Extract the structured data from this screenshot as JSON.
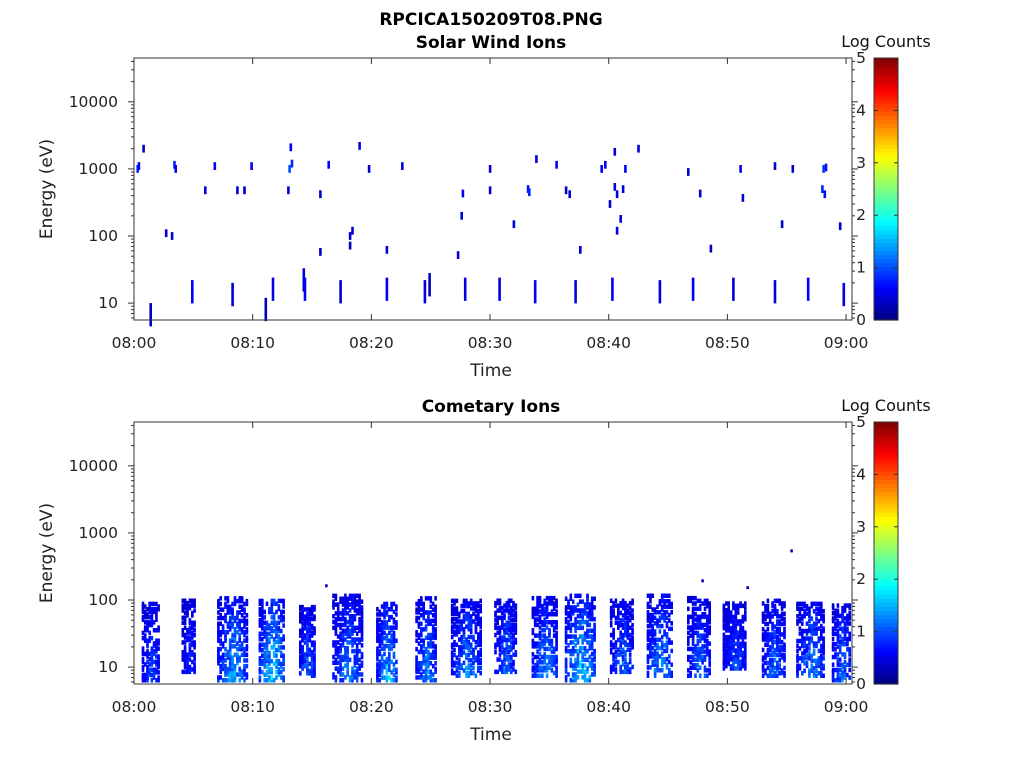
{
  "figure": {
    "title": "RPCICA150209T08.PNG"
  },
  "colors": {
    "colormap": [
      "#00007f",
      "#0000ff",
      "#007fff",
      "#00ffff",
      "#7fff7f",
      "#ffff00",
      "#ff7f00",
      "#ff0000",
      "#7f0000"
    ]
  },
  "chart_data": [
    {
      "type": "heatmap",
      "title": "Solar Wind Ions",
      "xlabel": "Time",
      "ylabel": "Energy (eV)",
      "x_ticks": [
        "08:00",
        "08:10",
        "08:20",
        "08:30",
        "08:40",
        "08:50",
        "09:00"
      ],
      "x_range_min": [
        0,
        60.5
      ],
      "y_ticks": [
        "10",
        "100",
        "1000",
        "10000"
      ],
      "y_ticks_values": [
        10,
        100,
        1000,
        10000
      ],
      "y_range_ev": [
        5.6,
        45000
      ],
      "y_scale": "log",
      "colorbar": {
        "label": "Log Counts",
        "ticks": [
          "0",
          "1",
          "2",
          "3",
          "4",
          "5"
        ],
        "range": [
          0,
          5
        ]
      },
      "points_desc": "each point: [minute, energy_eV, log_counts]",
      "points": [
        [
          0.2,
          1000,
          0.8
        ],
        [
          0.3,
          1100,
          0.6
        ],
        [
          0.7,
          2000,
          0.3
        ],
        [
          3.3,
          1150,
          0.8
        ],
        [
          3.4,
          1000,
          0.6
        ],
        [
          6.7,
          1100,
          0.6
        ],
        [
          9.8,
          1100,
          0.6
        ],
        [
          13.0,
          1000,
          1.0
        ],
        [
          13.2,
          1200,
          0.8
        ],
        [
          13.1,
          2100,
          0.5
        ],
        [
          16.3,
          1150,
          0.6
        ],
        [
          18.9,
          2200,
          0.5
        ],
        [
          19.7,
          1000,
          0.4
        ],
        [
          22.5,
          1100,
          0.5
        ],
        [
          29.9,
          1000,
          0.4
        ],
        [
          33.8,
          1400,
          0.4
        ],
        [
          35.5,
          1150,
          0.6
        ],
        [
          39.3,
          1000,
          0.6
        ],
        [
          39.6,
          1150,
          0.5
        ],
        [
          40.4,
          1800,
          0.4
        ],
        [
          41.3,
          1000,
          0.6
        ],
        [
          42.4,
          2000,
          0.4
        ],
        [
          46.6,
          900,
          0.4
        ],
        [
          51.0,
          1000,
          0.5
        ],
        [
          53.9,
          1100,
          0.4
        ],
        [
          55.4,
          1000,
          0.4
        ],
        [
          58.0,
          1000,
          0.9
        ],
        [
          58.2,
          1050,
          0.7
        ],
        [
          5.9,
          480,
          0.5
        ],
        [
          8.6,
          480,
          0.4
        ],
        [
          9.2,
          480,
          0.4
        ],
        [
          12.9,
          480,
          0.4
        ],
        [
          15.6,
          420,
          0.4
        ],
        [
          27.6,
          430,
          0.5
        ],
        [
          29.9,
          480,
          0.4
        ],
        [
          33.1,
          500,
          0.7
        ],
        [
          33.2,
          450,
          0.8
        ],
        [
          36.3,
          480,
          0.4
        ],
        [
          36.6,
          420,
          0.4
        ],
        [
          40.4,
          540,
          0.5
        ],
        [
          40.6,
          420,
          0.5
        ],
        [
          40.0,
          300,
          0.4
        ],
        [
          41.1,
          500,
          0.4
        ],
        [
          47.6,
          430,
          0.4
        ],
        [
          51.2,
          370,
          0.4
        ],
        [
          57.9,
          500,
          0.8
        ],
        [
          58.1,
          420,
          0.7
        ],
        [
          27.5,
          200,
          0.5
        ],
        [
          31.9,
          150,
          0.5
        ],
        [
          40.9,
          180,
          0.5
        ],
        [
          40.6,
          120,
          0.5
        ],
        [
          54.5,
          150,
          0.4
        ],
        [
          59.4,
          140,
          0.4
        ],
        [
          18.3,
          120,
          0.4
        ],
        [
          18.1,
          100,
          0.4
        ],
        [
          2.6,
          110,
          0.4
        ],
        [
          3.1,
          100,
          0.4
        ],
        [
          15.6,
          58,
          0.3
        ],
        [
          18.1,
          72,
          0.3
        ],
        [
          21.2,
          62,
          0.4
        ],
        [
          27.2,
          52,
          0.4
        ],
        [
          37.5,
          62,
          0.4
        ],
        [
          48.5,
          65,
          0.3
        ],
        [
          14.2,
          33,
          0.4
        ],
        [
          24.8,
          28,
          0.3
        ],
        [
          1.3,
          10,
          0.3
        ],
        [
          4.8,
          22,
          0.6
        ],
        [
          8.2,
          20,
          0.4
        ],
        [
          11.0,
          12,
          0.3
        ],
        [
          11.6,
          24,
          0.5
        ],
        [
          14.3,
          24,
          0.6
        ],
        [
          17.3,
          22,
          0.4
        ],
        [
          21.2,
          24,
          0.6
        ],
        [
          24.4,
          22,
          0.5
        ],
        [
          27.8,
          24,
          0.5
        ],
        [
          30.7,
          24,
          0.5
        ],
        [
          33.7,
          22,
          0.6
        ],
        [
          37.1,
          22,
          0.5
        ],
        [
          40.2,
          24,
          0.6
        ],
        [
          44.2,
          22,
          0.5
        ],
        [
          47.0,
          24,
          0.6
        ],
        [
          50.4,
          24,
          0.4
        ],
        [
          53.9,
          22,
          0.4
        ],
        [
          56.7,
          24,
          0.6
        ],
        [
          59.7,
          20,
          0.5
        ]
      ]
    },
    {
      "type": "heatmap",
      "title": "Cometary Ions",
      "xlabel": "Time",
      "ylabel": "Energy (eV)",
      "x_ticks": [
        "08:00",
        "08:10",
        "08:20",
        "08:30",
        "08:40",
        "08:50",
        "09:00"
      ],
      "x_range_min": [
        0,
        60.5
      ],
      "y_ticks": [
        "10",
        "100",
        "1000",
        "10000"
      ],
      "y_ticks_values": [
        10,
        100,
        1000,
        10000
      ],
      "y_range_ev": [
        5.6,
        45000
      ],
      "y_scale": "log",
      "colorbar": {
        "label": "Log Counts",
        "ticks": [
          "0",
          "1",
          "2",
          "3",
          "4",
          "5"
        ],
        "range": [
          0,
          5
        ]
      },
      "bursts_desc": "each burst: [center_minute, width_minutes, e_low_eV, e_high_eV, peak_log_counts]",
      "bursts": [
        [
          1.4,
          1.5,
          6,
          90,
          1.0
        ],
        [
          4.6,
          1.2,
          8,
          100,
          0.8
        ],
        [
          8.3,
          2.6,
          6,
          110,
          1.6
        ],
        [
          11.6,
          2.2,
          6,
          100,
          2.0
        ],
        [
          14.6,
          1.4,
          7,
          80,
          1.2
        ],
        [
          18.0,
          2.6,
          6,
          120,
          1.3
        ],
        [
          21.3,
          1.8,
          6,
          90,
          1.7
        ],
        [
          24.6,
          1.8,
          6,
          110,
          1.4
        ],
        [
          28.0,
          2.6,
          7,
          100,
          1.4
        ],
        [
          31.3,
          1.9,
          8,
          100,
          1.2
        ],
        [
          34.6,
          2.2,
          7,
          110,
          1.4
        ],
        [
          37.6,
          2.6,
          6,
          120,
          1.9
        ],
        [
          41.1,
          2.0,
          8,
          100,
          1.2
        ],
        [
          44.3,
          2.2,
          7,
          120,
          1.5
        ],
        [
          47.6,
          2.0,
          7,
          110,
          1.2
        ],
        [
          50.6,
          2.0,
          9,
          90,
          1.0
        ],
        [
          53.9,
          2.0,
          7,
          100,
          1.2
        ],
        [
          57.0,
          2.4,
          7,
          90,
          1.4
        ],
        [
          59.6,
          1.6,
          6,
          85,
          1.3
        ]
      ],
      "isolated_points": [
        [
          16.1,
          160,
          0.3
        ],
        [
          47.8,
          190,
          0.3
        ],
        [
          55.3,
          530,
          0.4
        ],
        [
          51.6,
          150,
          0.3
        ]
      ]
    }
  ]
}
